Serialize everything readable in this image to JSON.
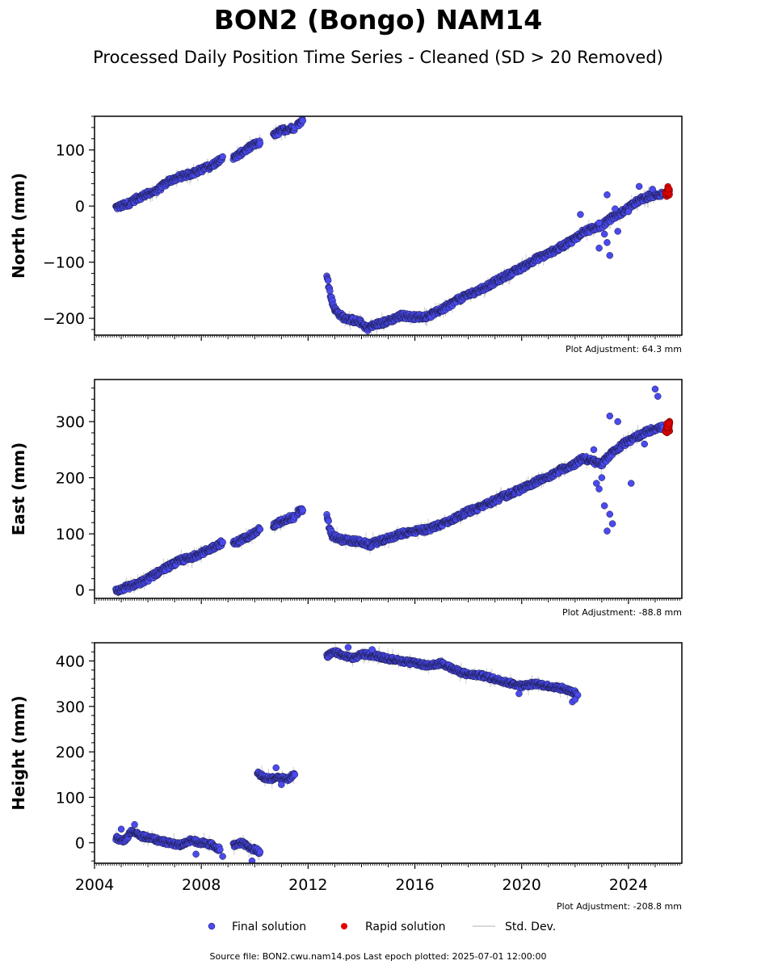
{
  "title": "BON2 (Bongo) NAM14",
  "subtitle": "Processed Daily Position Time Series - Cleaned (SD > 20 Removed)",
  "colors": {
    "final": "#4a4af0",
    "final_edge": "#1a1a40",
    "rapid": "#e00000",
    "std": "#cccccc"
  },
  "legend": {
    "final": "Final solution",
    "rapid": "Rapid solution",
    "std": "Std. Dev."
  },
  "source_note": "Source file: BON2.cwu.nam14.pos  Last epoch plotted: 2025-07-01 12:00:00",
  "chart_data": [
    {
      "type": "scatter",
      "ylabel": "North (mm)",
      "xlim": [
        2004,
        2026
      ],
      "ylim": [
        -230,
        160
      ],
      "yticks": [
        -200,
        -100,
        0,
        100
      ],
      "ytick_labels": [
        "−200",
        "−100",
        "0",
        "100"
      ],
      "xticks": [
        2004,
        2008,
        2012,
        2016,
        2020,
        2024
      ],
      "adjustment": "Plot Adjustment: 64.3 mm",
      "series": [
        {
          "name": "Final solution",
          "kind": "final",
          "segments": [
            [
              [
                2004.8,
                -2
              ],
              [
                2005.0,
                0
              ],
              [
                2005.3,
                5
              ],
              [
                2005.6,
                14
              ],
              [
                2006.0,
                22
              ],
              [
                2006.4,
                30
              ],
              [
                2006.8,
                45
              ],
              [
                2007.2,
                52
              ],
              [
                2007.6,
                57
              ],
              [
                2008.0,
                65
              ],
              [
                2008.4,
                72
              ],
              [
                2008.8,
                88
              ]
            ],
            [
              [
                2009.2,
                85
              ],
              [
                2009.6,
                98
              ],
              [
                2010.0,
                110
              ],
              [
                2010.2,
                112
              ]
            ],
            [
              [
                2010.7,
                125
              ],
              [
                2011.0,
                135
              ],
              [
                2011.3,
                138
              ],
              [
                2011.5,
                140
              ]
            ],
            [
              [
                2011.6,
                145
              ],
              [
                2011.8,
                152
              ]
            ],
            [
              [
                2012.7,
                -120
              ],
              [
                2012.8,
                -150
              ],
              [
                2012.9,
                -170
              ],
              [
                2013.0,
                -185
              ],
              [
                2013.3,
                -198
              ],
              [
                2013.6,
                -202
              ],
              [
                2014.0,
                -208
              ],
              [
                2014.2,
                -218
              ],
              [
                2014.5,
                -212
              ],
              [
                2015.0,
                -205
              ],
              [
                2015.5,
                -195
              ],
              [
                2016.0,
                -198
              ],
              [
                2016.5,
                -196
              ],
              [
                2017.0,
                -185
              ],
              [
                2017.5,
                -170
              ],
              [
                2018.0,
                -158
              ],
              [
                2018.5,
                -148
              ],
              [
                2019.0,
                -135
              ],
              [
                2019.5,
                -122
              ],
              [
                2020.0,
                -110
              ],
              [
                2020.5,
                -95
              ],
              [
                2021.0,
                -85
              ],
              [
                2021.5,
                -72
              ],
              [
                2022.0,
                -58
              ],
              [
                2022.3,
                -45
              ],
              [
                2022.7,
                -40
              ],
              [
                2023.0,
                -35
              ],
              [
                2023.4,
                -20
              ],
              [
                2023.8,
                -10
              ],
              [
                2024.2,
                5
              ],
              [
                2024.6,
                15
              ],
              [
                2025.0,
                20
              ],
              [
                2025.3,
                22
              ]
            ]
          ],
          "scatter": [
            [
              2023.2,
              -65
            ],
            [
              2023.3,
              -88
            ],
            [
              2023.1,
              -50
            ],
            [
              2022.9,
              -30
            ],
            [
              2023.5,
              -5
            ],
            [
              2024.4,
              35
            ],
            [
              2023.2,
              20
            ],
            [
              2022.2,
              -15
            ],
            [
              2022.9,
              -75
            ],
            [
              2023.6,
              -45
            ],
            [
              2024.9,
              30
            ],
            [
              2024.0,
              -10
            ]
          ]
        },
        {
          "name": "Rapid solution",
          "kind": "rapid",
          "values": [
            [
              2025.4,
              22
            ],
            [
              2025.45,
              28
            ],
            [
              2025.5,
              32
            ],
            [
              2025.5,
              25
            ]
          ]
        }
      ]
    },
    {
      "type": "scatter",
      "ylabel": "East (mm)",
      "xlim": [
        2004,
        2026
      ],
      "ylim": [
        -15,
        375
      ],
      "yticks": [
        0,
        100,
        200,
        300
      ],
      "ytick_labels": [
        "0",
        "100",
        "200",
        "300"
      ],
      "xticks": [
        2004,
        2008,
        2012,
        2016,
        2020,
        2024
      ],
      "adjustment": "Plot Adjustment: -88.8 mm",
      "series": [
        {
          "name": "Final solution",
          "kind": "final",
          "segments": [
            [
              [
                2004.8,
                -2
              ],
              [
                2005.2,
                5
              ],
              [
                2005.6,
                10
              ],
              [
                2006.0,
                20
              ],
              [
                2006.4,
                32
              ],
              [
                2006.8,
                42
              ],
              [
                2007.2,
                52
              ],
              [
                2007.6,
                58
              ],
              [
                2008.0,
                65
              ],
              [
                2008.4,
                75
              ],
              [
                2008.8,
                85
              ]
            ],
            [
              [
                2009.2,
                82
              ],
              [
                2009.6,
                92
              ],
              [
                2010.0,
                102
              ],
              [
                2010.2,
                108
              ]
            ],
            [
              [
                2010.7,
                115
              ],
              [
                2011.0,
                122
              ],
              [
                2011.3,
                128
              ],
              [
                2011.5,
                130
              ]
            ],
            [
              [
                2011.6,
                138
              ],
              [
                2011.8,
                142
              ]
            ],
            [
              [
                2012.7,
                135
              ],
              [
                2012.8,
                110
              ],
              [
                2012.9,
                97
              ],
              [
                2013.2,
                90
              ],
              [
                2013.6,
                88
              ],
              [
                2014.0,
                85
              ],
              [
                2014.3,
                80
              ],
              [
                2014.7,
                88
              ],
              [
                2015.0,
                92
              ],
              [
                2015.5,
                100
              ],
              [
                2016.0,
                105
              ],
              [
                2016.5,
                108
              ],
              [
                2017.0,
                118
              ],
              [
                2017.5,
                128
              ],
              [
                2018.0,
                140
              ],
              [
                2018.5,
                148
              ],
              [
                2019.0,
                160
              ],
              [
                2019.5,
                170
              ],
              [
                2020.0,
                180
              ],
              [
                2020.5,
                192
              ],
              [
                2021.0,
                202
              ],
              [
                2021.5,
                215
              ],
              [
                2022.0,
                225
              ],
              [
                2022.3,
                235
              ],
              [
                2022.6,
                230
              ],
              [
                2023.0,
                225
              ],
              [
                2023.4,
                245
              ],
              [
                2023.8,
                260
              ],
              [
                2024.2,
                270
              ],
              [
                2024.6,
                280
              ],
              [
                2025.0,
                288
              ],
              [
                2025.3,
                290
              ]
            ]
          ],
          "scatter": [
            [
              2022.9,
              180
            ],
            [
              2023.1,
              150
            ],
            [
              2023.3,
              135
            ],
            [
              2023.2,
              105
            ],
            [
              2023.4,
              118
            ],
            [
              2023.0,
              200
            ],
            [
              2022.8,
              190
            ],
            [
              2023.3,
              310
            ],
            [
              2023.6,
              300
            ],
            [
              2024.1,
              190
            ],
            [
              2025.0,
              358
            ],
            [
              2025.1,
              345
            ],
            [
              2022.7,
              250
            ],
            [
              2024.6,
              260
            ]
          ]
        },
        {
          "name": "Rapid solution",
          "kind": "rapid",
          "values": [
            [
              2025.4,
              285
            ],
            [
              2025.45,
              292
            ],
            [
              2025.5,
              288
            ],
            [
              2025.5,
              295
            ]
          ]
        }
      ]
    },
    {
      "type": "scatter",
      "ylabel": "Height (mm)",
      "xlim": [
        2004,
        2026
      ],
      "ylim": [
        -45,
        440
      ],
      "yticks": [
        0,
        100,
        200,
        300,
        400
      ],
      "ytick_labels": [
        "0",
        "100",
        "200",
        "300",
        "400"
      ],
      "xticks": [
        2004,
        2008,
        2012,
        2016,
        2020,
        2024
      ],
      "xtick_labels": [
        "2004",
        "2008",
        "2012",
        "2016",
        "2020",
        "2024"
      ],
      "adjustment": "Plot Adjustment: -208.8 mm",
      "series": [
        {
          "name": "Final solution",
          "kind": "final",
          "segments": [
            [
              [
                2004.8,
                10
              ],
              [
                2005.1,
                5
              ],
              [
                2005.4,
                25
              ],
              [
                2005.7,
                15
              ],
              [
                2006.0,
                12
              ],
              [
                2006.4,
                5
              ],
              [
                2006.8,
                0
              ],
              [
                2007.2,
                -5
              ],
              [
                2007.6,
                5
              ],
              [
                2008.0,
                0
              ],
              [
                2008.4,
                -5
              ],
              [
                2008.7,
                -15
              ]
            ],
            [
              [
                2009.2,
                -5
              ],
              [
                2009.5,
                0
              ],
              [
                2009.8,
                -10
              ],
              [
                2010.0,
                -15
              ],
              [
                2010.2,
                -20
              ]
            ],
            [
              [
                2010.1,
                155
              ],
              [
                2010.3,
                145
              ],
              [
                2010.6,
                140
              ],
              [
                2010.9,
                145
              ],
              [
                2011.2,
                140
              ],
              [
                2011.5,
                150
              ]
            ],
            [
              [
                2012.7,
                410
              ],
              [
                2013.0,
                420
              ],
              [
                2013.3,
                412
              ],
              [
                2013.7,
                405
              ],
              [
                2014.0,
                415
              ],
              [
                2014.5,
                412
              ],
              [
                2015.0,
                405
              ],
              [
                2015.5,
                400
              ],
              [
                2016.0,
                395
              ],
              [
                2016.5,
                390
              ],
              [
                2017.0,
                395
              ],
              [
                2017.5,
                380
              ],
              [
                2018.0,
                370
              ],
              [
                2018.5,
                368
              ],
              [
                2019.0,
                360
              ],
              [
                2019.5,
                352
              ],
              [
                2020.0,
                345
              ],
              [
                2020.5,
                350
              ],
              [
                2021.0,
                345
              ],
              [
                2021.5,
                340
              ],
              [
                2022.0,
                330
              ],
              [
                2022.1,
                325
              ]
            ]
          ],
          "scatter": [
            [
              2005.5,
              40
            ],
            [
              2005.0,
              30
            ],
            [
              2007.8,
              -25
            ],
            [
              2008.8,
              -30
            ],
            [
              2009.9,
              -40
            ],
            [
              2010.8,
              165
            ],
            [
              2011.0,
              128
            ],
            [
              2013.5,
              430
            ],
            [
              2014.4,
              425
            ],
            [
              2019.9,
              328
            ],
            [
              2021.9,
              310
            ],
            [
              2022.0,
              315
            ]
          ]
        }
      ]
    }
  ]
}
